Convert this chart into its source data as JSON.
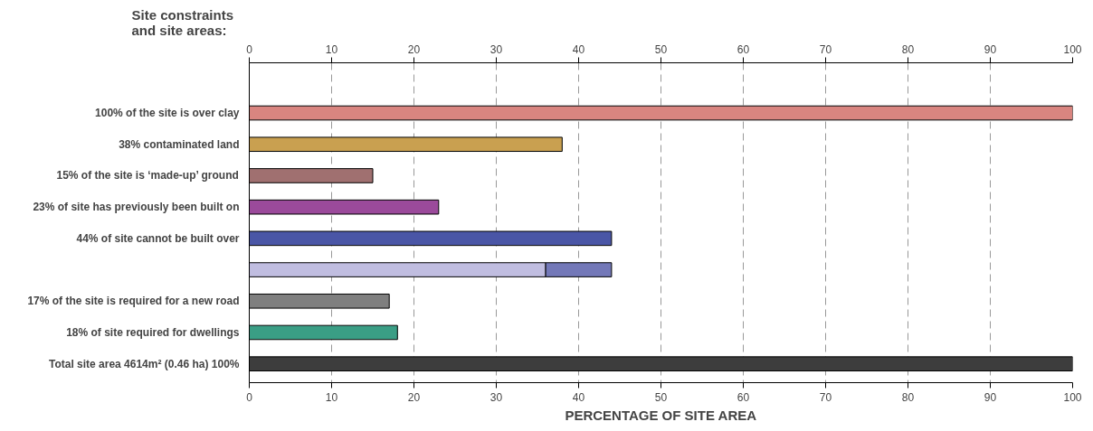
{
  "chart_data": {
    "type": "bar",
    "orientation": "horizontal",
    "stacked": true,
    "ylabel": "Site constraints and site areas:",
    "xlabel": "PERCENTAGE OF SITE AREA",
    "categories": [
      "100% of the site is over clay",
      "38% contaminated land",
      "15% of the site is ‘made-up’ ground",
      "23% of site has previously been built on",
      "44% of site cannot be built over",
      null,
      "17% of the site is required for a new road",
      "18% of site required for dwellings",
      "Total site area 4614m² (0.46 ha) 100%"
    ],
    "series": [
      {
        "values": [
          100,
          38,
          15,
          23,
          44,
          36,
          17,
          18,
          100
        ],
        "colors": [
          "#d98580",
          "#c9a050",
          "#a07070",
          "#9b4a9b",
          "#4a56a6",
          "#c0bde0",
          "#7f7f7f",
          "#3a9e85",
          "#3d3d3d"
        ]
      },
      {
        "values": [
          null,
          null,
          null,
          null,
          null,
          8,
          null,
          null,
          null
        ],
        "color": "#7378b8"
      }
    ],
    "xlim": [
      0,
      100
    ],
    "xticks": [
      0,
      10,
      20,
      30,
      40,
      50,
      60,
      70,
      80,
      90,
      100
    ],
    "x2lim": [
      0,
      100
    ],
    "x2ticks": [
      0,
      10,
      20,
      30,
      40,
      50,
      60,
      70,
      80,
      90,
      100
    ],
    "grid": "x"
  }
}
